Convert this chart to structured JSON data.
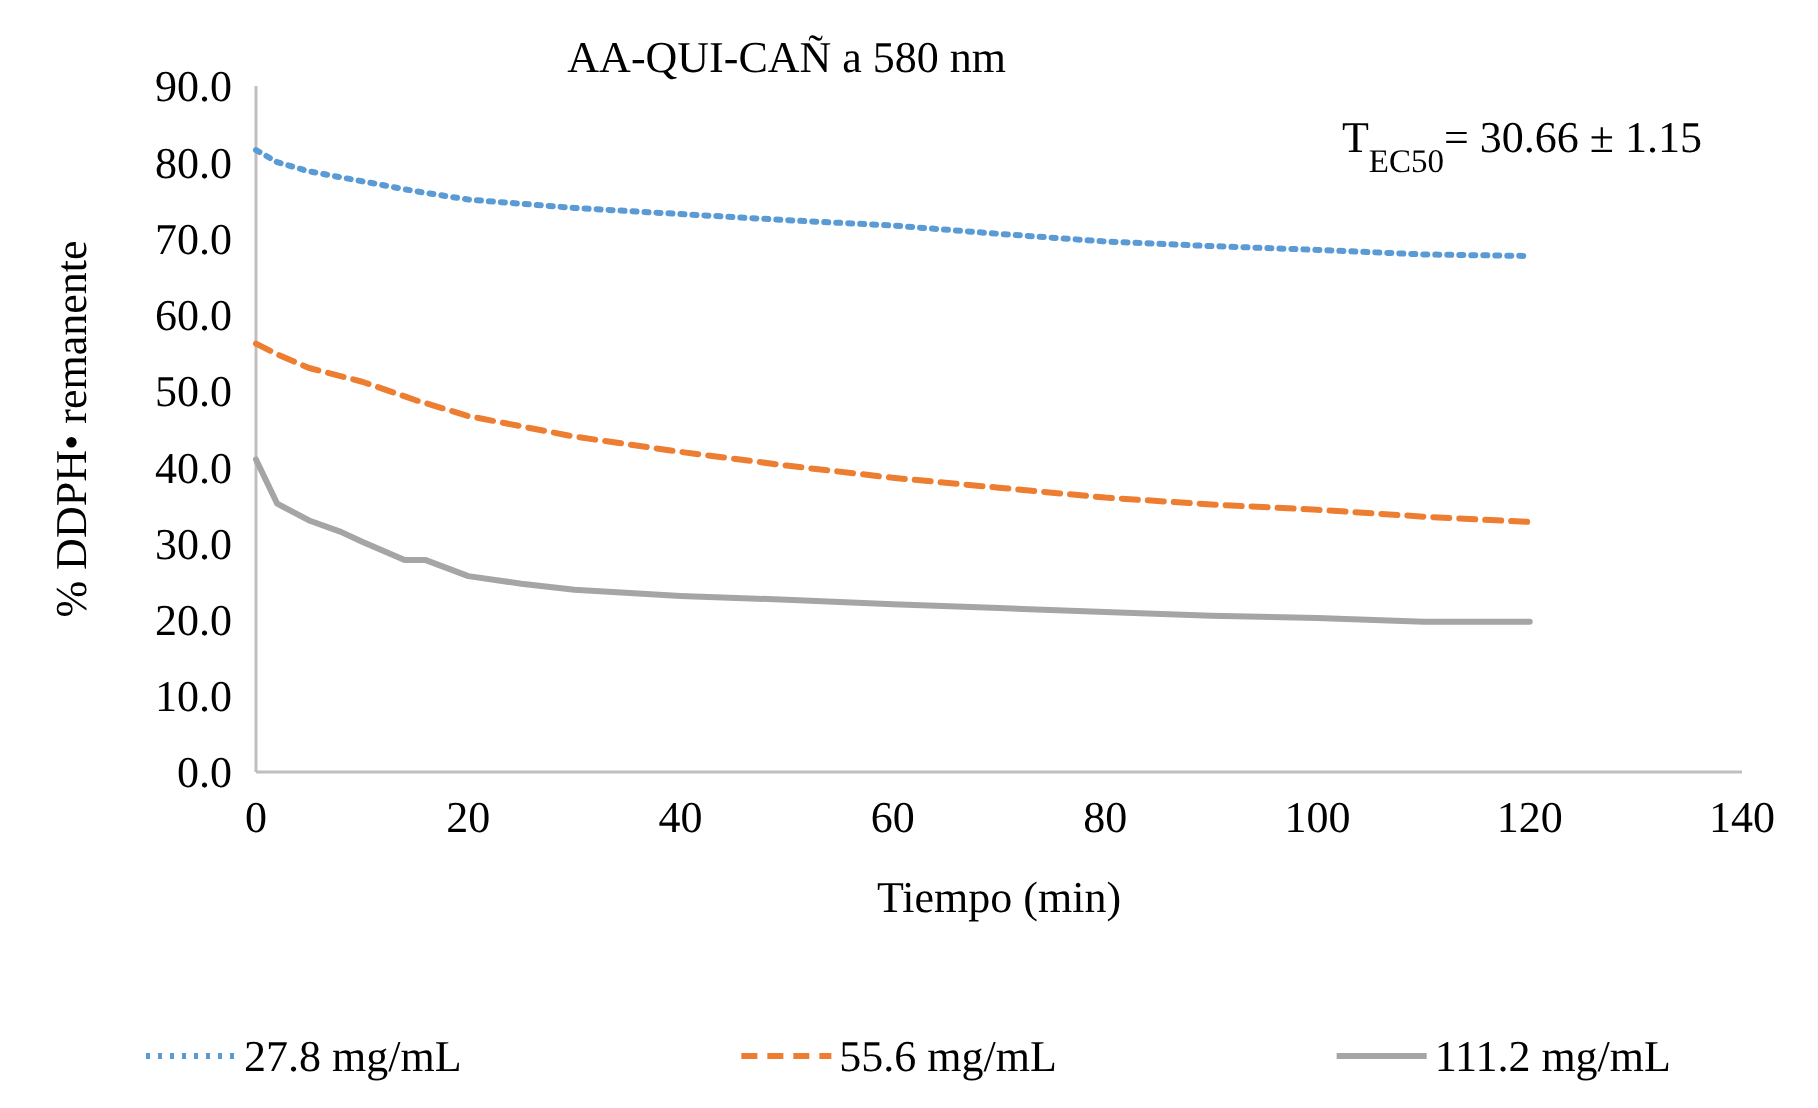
{
  "chart_data": {
    "type": "line",
    "title": "AA-QUI-CAÑ a 580 nm",
    "xlabel": "Tiempo (min)",
    "ylabel": "% DDPH• remanente",
    "annotations": [
      "T$_{EC50}$= 30.66 ± 1.15"
    ],
    "xlim": [
      0,
      140
    ],
    "xticks": [
      0,
      20,
      40,
      60,
      80,
      100,
      120,
      140
    ],
    "ylim": [
      0,
      90
    ],
    "yticks": [
      {
        "value": 0,
        "label": "0.0"
      },
      {
        "value": 10,
        "label": "10.0"
      },
      {
        "value": 20,
        "label": "20.0"
      },
      {
        "value": 30,
        "label": "30.0"
      },
      {
        "value": 40,
        "label": "40.0"
      },
      {
        "value": 50,
        "label": "50.0"
      },
      {
        "value": 60,
        "label": "60.0"
      },
      {
        "value": 70,
        "label": "70.0"
      },
      {
        "value": 80,
        "label": "80.0"
      },
      {
        "value": 90,
        "label": "90.0"
      }
    ],
    "grid": false,
    "legend": "bottom",
    "marker": "none",
    "series": [
      {
        "name": "27.8 mg/mL",
        "color": "#5b9bd5",
        "line_style": "dotted",
        "x": [
          0,
          2,
          5,
          10,
          15,
          20,
          30,
          40,
          50,
          60,
          70,
          80,
          90,
          100,
          110,
          120
        ],
        "values": [
          81.6,
          80,
          78.8,
          77.5,
          76.2,
          75.1,
          74,
          73.2,
          72.4,
          71.7,
          70.6,
          69.6,
          69,
          68.5,
          67.9,
          67.7
        ]
      },
      {
        "name": "55.6 mg/mL",
        "color": "#ed7d31",
        "line_style": "dashed",
        "x": [
          0,
          2,
          5,
          10,
          15,
          20,
          30,
          40,
          50,
          60,
          70,
          80,
          90,
          100,
          110,
          120
        ],
        "values": [
          56.2,
          54.8,
          53,
          51.2,
          48.8,
          46.7,
          44,
          42,
          40.2,
          38.6,
          37.3,
          36,
          35.1,
          34.4,
          33.5,
          32.8
        ]
      },
      {
        "name": "111.2 mg/mL",
        "color": "#a5a5a5",
        "line_style": "solid",
        "x": [
          0,
          2,
          5,
          8,
          10,
          14,
          16,
          20,
          25,
          30,
          40,
          50,
          60,
          70,
          80,
          90,
          100,
          110,
          120
        ],
        "values": [
          41,
          35.2,
          33,
          31.5,
          30.2,
          27.8,
          27.8,
          25.7,
          24.7,
          23.9,
          23.1,
          22.6,
          22,
          21.5,
          21,
          20.5,
          20.2,
          19.7,
          19.7
        ]
      }
    ]
  }
}
